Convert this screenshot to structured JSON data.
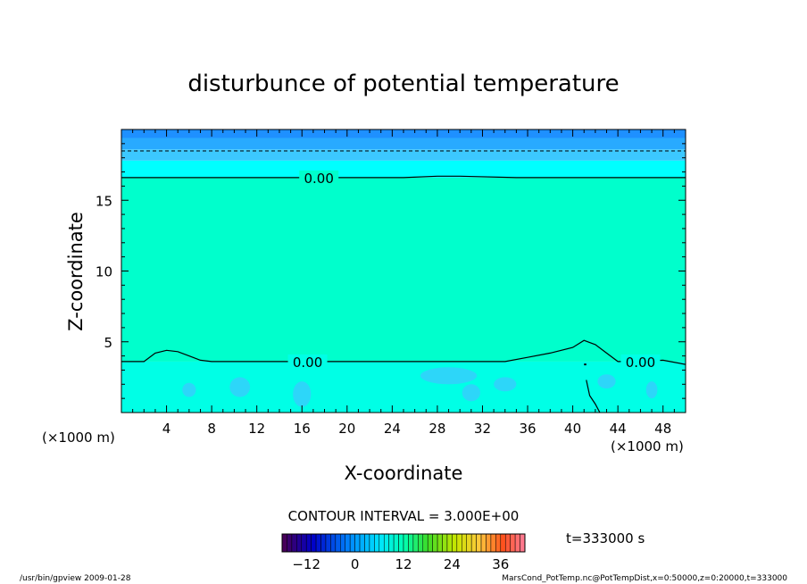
{
  "chart_data": {
    "type": "contour",
    "title": "disturbunce of potential temperature",
    "xlabel": "X-coordinate",
    "ylabel": "Z-coordinate",
    "x_unit_left": "(×1000 m)",
    "x_unit_right": "(×1000 m)",
    "xlim": [
      0,
      50
    ],
    "ylim": [
      0,
      20
    ],
    "x_ticks": [
      4,
      8,
      12,
      16,
      20,
      24,
      28,
      32,
      36,
      40,
      44,
      48
    ],
    "y_ticks": [
      5,
      10,
      15
    ],
    "contour_interval_text": "CONTOUR INTERVAL = 3.000E+00",
    "time_text": "t=333000 s",
    "colorbar_ticks": [
      -12,
      0,
      12,
      24,
      36
    ],
    "colorbar_range": [
      -18,
      42
    ],
    "contour_label": "0.00",
    "bands": [
      {
        "z_from": 19.4,
        "z_to": 20,
        "color": "#1e90ff"
      },
      {
        "z_from": 18.6,
        "z_to": 19.4,
        "color": "#28aaff"
      },
      {
        "z_from": 17.8,
        "z_to": 18.6,
        "color": "#3cc8ff"
      },
      {
        "z_from": 16.6,
        "z_to": 17.8,
        "color": "#00ffff"
      },
      {
        "z_from": 3.6,
        "z_to": 16.6,
        "color": "#00ffcc"
      },
      {
        "z_from": 0,
        "z_to": 3.6,
        "color": "#00ffe6"
      }
    ],
    "series": [
      {
        "x": [
          0,
          5,
          10,
          15,
          20,
          25,
          28,
          30,
          35,
          40,
          45,
          50
        ],
        "y": [
          16.6,
          16.6,
          16.6,
          16.6,
          16.6,
          16.6,
          16.7,
          16.7,
          16.6,
          16.6,
          16.6,
          16.6
        ]
      },
      {
        "x": [
          0,
          2,
          3,
          4,
          5,
          6,
          7,
          8,
          10,
          16,
          20,
          24,
          30,
          34,
          36,
          38,
          40,
          41,
          42,
          43,
          44,
          46,
          48,
          50
        ],
        "y": [
          3.6,
          3.6,
          4.2,
          4.4,
          4.3,
          4.0,
          3.7,
          3.6,
          3.6,
          3.6,
          3.6,
          3.6,
          3.6,
          3.6,
          3.9,
          4.2,
          4.6,
          5.1,
          4.8,
          4.2,
          3.6,
          3.6,
          3.7,
          3.4
        ]
      }
    ]
  },
  "footer": {
    "left": "/usr/bin/gpview  2009-01-28",
    "right": "MarsCond_PotTemp.nc@PotTempDist,x=0:50000,z=0:20000,t=333000"
  }
}
